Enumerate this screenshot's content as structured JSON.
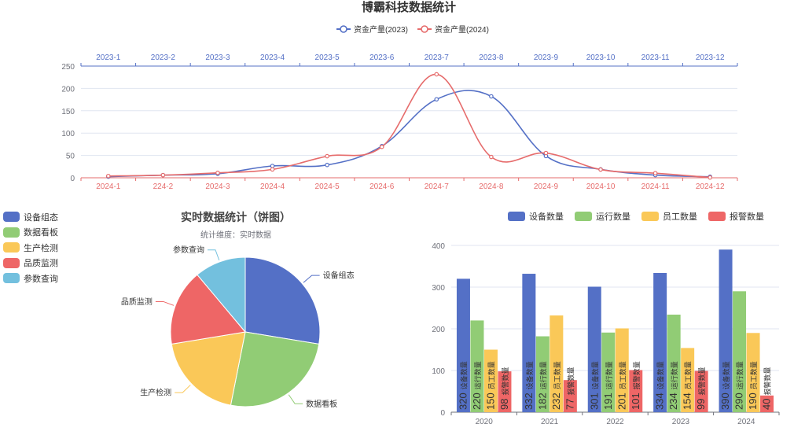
{
  "chart_data": [
    {
      "type": "line",
      "title": "博霸科技数据统计",
      "x_top": [
        "2023-1",
        "2023-2",
        "2023-3",
        "2023-4",
        "2023-5",
        "2023-6",
        "2023-7",
        "2023-8",
        "2023-9",
        "2023-10",
        "2023-11",
        "2023-12"
      ],
      "x_bottom": [
        "2024-1",
        "224-2",
        "2024-3",
        "2024-4",
        "2024-5",
        "2024-6",
        "2024-7",
        "2024-8",
        "2024-9",
        "2024-10",
        "2024-11",
        "2024-12"
      ],
      "ylim": [
        0,
        250
      ],
      "yticks": [
        0,
        50,
        100,
        150,
        200,
        250
      ],
      "series": [
        {
          "name": "资金产量(2023)",
          "color": "#5470c6",
          "values": [
            2.6,
            5.9,
            9.0,
            26.4,
            28.7,
            70.7,
            175.6,
            182.2,
            48.7,
            18.8,
            6.0,
            2.3
          ]
        },
        {
          "name": "资金产量(2024)",
          "color": "#e66c6c",
          "values": [
            3.9,
            5.9,
            11.1,
            18.7,
            48.3,
            69.2,
            231.6,
            46.6,
            55.4,
            18.4,
            10.3,
            0.7
          ]
        }
      ]
    },
    {
      "type": "pie",
      "title": "实时数据统计（饼图）",
      "subtitle": "统计维度：实时数据",
      "slices": [
        {
          "name": "设备组态",
          "value": 335,
          "color": "#5470c6"
        },
        {
          "name": "数据看板",
          "value": 310,
          "color": "#91cc75"
        },
        {
          "name": "生产检测",
          "value": 234,
          "color": "#fac858"
        },
        {
          "name": "品质监测",
          "value": 200,
          "color": "#ee6666"
        },
        {
          "name": "参数查询",
          "value": 135,
          "color": "#73c0de"
        }
      ]
    },
    {
      "type": "bar",
      "categories": [
        "2020",
        "2021",
        "2022",
        "2023",
        "2024"
      ],
      "ylim": [
        0,
        400
      ],
      "yticks": [
        0,
        100,
        200,
        300,
        400
      ],
      "series": [
        {
          "name": "设备数量",
          "color": "#5470c6",
          "values": [
            320,
            332,
            301,
            334,
            390
          ]
        },
        {
          "name": "运行数量",
          "color": "#91cc75",
          "values": [
            220,
            182,
            191,
            234,
            290
          ]
        },
        {
          "name": "员工数量",
          "color": "#fac858",
          "values": [
            150,
            232,
            201,
            154,
            190
          ]
        },
        {
          "name": "报警数量",
          "color": "#ee6666",
          "values": [
            98,
            77,
            101,
            99,
            40
          ]
        }
      ]
    }
  ]
}
